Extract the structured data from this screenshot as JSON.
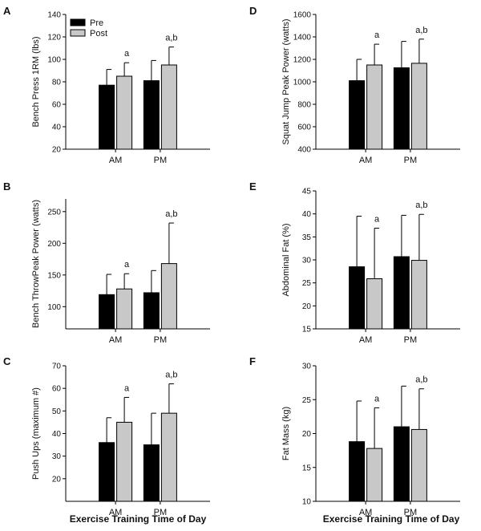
{
  "figure": {
    "x_title": "Exercise Training Time of Day",
    "colors": {
      "pre": "#000000",
      "post": "#c8c8c8",
      "axis": "#000000"
    }
  },
  "legend": {
    "items": [
      "Pre",
      "Post"
    ]
  },
  "chart_data": [
    {
      "panel": "A",
      "type": "bar",
      "ylabel": "Bench Press 1RM (lbs)",
      "ylim": [
        20,
        140
      ],
      "yticks": [
        20,
        40,
        60,
        80,
        100,
        120,
        140
      ],
      "categories": [
        "AM",
        "PM"
      ],
      "series": [
        {
          "name": "Pre",
          "values": [
            77,
            81
          ],
          "errors": [
            14,
            18
          ]
        },
        {
          "name": "Post",
          "values": [
            85,
            95
          ],
          "errors": [
            12,
            16
          ]
        }
      ],
      "annotations": [
        "a",
        "a,b"
      ],
      "legend": "top-left"
    },
    {
      "panel": "B",
      "type": "bar",
      "ylabel": "Bench ThrowPeak Power (watts)",
      "ylim": [
        65,
        270
      ],
      "yticks": [
        100,
        150,
        200,
        250
      ],
      "categories": [
        "AM",
        "PM"
      ],
      "series": [
        {
          "name": "Pre",
          "values": [
            119,
            122
          ],
          "errors": [
            32,
            35
          ]
        },
        {
          "name": "Post",
          "values": [
            128,
            168
          ],
          "errors": [
            24,
            64
          ]
        }
      ],
      "annotations": [
        "a",
        "a,b"
      ]
    },
    {
      "panel": "C",
      "type": "bar",
      "ylabel": "Push Ups (maximum #)",
      "ylim": [
        10,
        70
      ],
      "yticks": [
        20,
        30,
        40,
        50,
        60,
        70
      ],
      "categories": [
        "AM",
        "PM"
      ],
      "series": [
        {
          "name": "Pre",
          "values": [
            36,
            35
          ],
          "errors": [
            11,
            14
          ]
        },
        {
          "name": "Post",
          "values": [
            45,
            49
          ],
          "errors": [
            11,
            13
          ]
        }
      ],
      "annotations": [
        "a",
        "a,b"
      ]
    },
    {
      "panel": "D",
      "type": "bar",
      "ylabel": "Squat Jump Peak Power (watts)",
      "ylim": [
        400,
        1600
      ],
      "yticks": [
        400,
        600,
        800,
        1000,
        1200,
        1400,
        1600
      ],
      "categories": [
        "AM",
        "PM"
      ],
      "series": [
        {
          "name": "Pre",
          "values": [
            1010,
            1125
          ],
          "errors": [
            190,
            235
          ]
        },
        {
          "name": "Post",
          "values": [
            1150,
            1165
          ],
          "errors": [
            185,
            215
          ]
        }
      ],
      "annotations": [
        "a",
        "a,b"
      ]
    },
    {
      "panel": "E",
      "type": "bar",
      "ylabel": "Abdominal Fat (%)",
      "ylim": [
        15,
        45
      ],
      "yticks": [
        15,
        20,
        25,
        30,
        35,
        40,
        45
      ],
      "categories": [
        "AM",
        "PM"
      ],
      "series": [
        {
          "name": "Pre",
          "values": [
            28.5,
            30.7
          ],
          "errors": [
            11,
            9
          ]
        },
        {
          "name": "Post",
          "values": [
            25.9,
            29.9
          ],
          "errors": [
            11,
            10
          ]
        }
      ],
      "annotations": [
        "a",
        "a,b"
      ]
    },
    {
      "panel": "F",
      "type": "bar",
      "ylabel": "Fat Mass (kg)",
      "ylim": [
        10,
        30
      ],
      "yticks": [
        10,
        15,
        20,
        25,
        30
      ],
      "categories": [
        "AM",
        "PM"
      ],
      "series": [
        {
          "name": "Pre",
          "values": [
            18.8,
            21.0
          ],
          "errors": [
            6,
            6
          ]
        },
        {
          "name": "Post",
          "values": [
            17.8,
            20.6
          ],
          "errors": [
            6,
            6
          ]
        }
      ],
      "annotations": [
        "a",
        "a,b"
      ]
    }
  ]
}
